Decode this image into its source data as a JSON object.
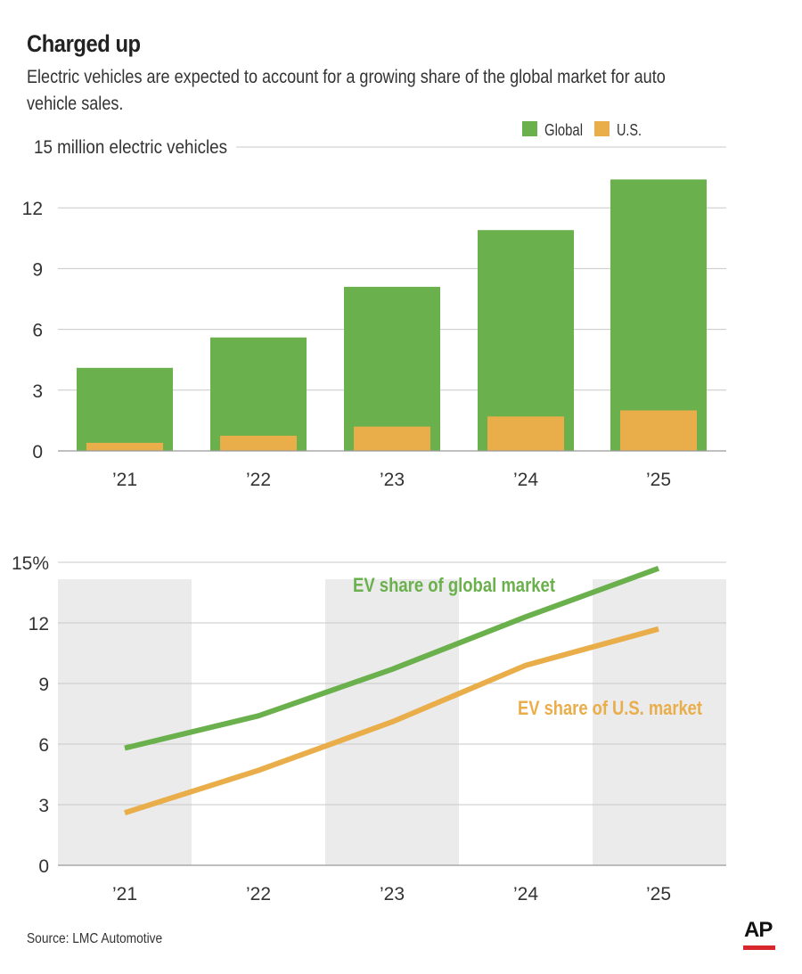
{
  "title": "Charged up",
  "subtitle": "Electric vehicles are expected to account for a growing share of the global market for auto vehicle sales.",
  "source": "Source: LMC Automotive",
  "logo": "AP",
  "colors": {
    "global": "#6ab04c",
    "us": "#e9ad4a",
    "grid": "#c8c8c8",
    "band": "#ebebeb"
  },
  "chart_data": [
    {
      "type": "bar",
      "title": "",
      "ylabel": "15 million electric vehicles",
      "ylim": [
        0,
        15
      ],
      "yticks": [
        "0",
        "3",
        "6",
        "9",
        "12"
      ],
      "categories": [
        "’21",
        "’22",
        "’23",
        "’24",
        "’25"
      ],
      "legend": {
        "position": "top-right",
        "entries": [
          "Global",
          "U.S."
        ]
      },
      "series": [
        {
          "name": "Global",
          "values": [
            4.1,
            5.6,
            8.1,
            10.9,
            13.4
          ]
        },
        {
          "name": "U.S.",
          "values": [
            0.4,
            0.75,
            1.2,
            1.7,
            2.0
          ]
        }
      ]
    },
    {
      "type": "line",
      "title": "",
      "ylim": [
        0,
        15
      ],
      "yticks": [
        "0",
        "3",
        "6",
        "9",
        "12",
        "15%"
      ],
      "categories": [
        "’21",
        "’22",
        "’23",
        "’24",
        "’25"
      ],
      "series": [
        {
          "name": "EV share of global market",
          "values": [
            5.8,
            7.4,
            9.7,
            12.3,
            14.7
          ]
        },
        {
          "name": "EV share of U.S. market",
          "values": [
            2.6,
            4.7,
            7.1,
            9.9,
            11.7
          ]
        }
      ]
    }
  ]
}
